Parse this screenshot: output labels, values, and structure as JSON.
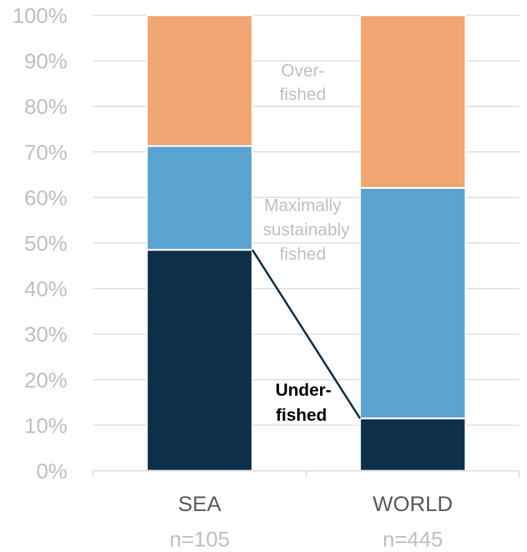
{
  "chart_data": {
    "type": "bar",
    "stacked": true,
    "categories": [
      "SEA",
      "WORLD"
    ],
    "sample_sizes": [
      "n=105",
      "n=445"
    ],
    "series": [
      {
        "name": "Under-fished",
        "values": [
          48.5,
          11.5
        ],
        "color": "#0e2f49"
      },
      {
        "name": "Maximally sustainably fished",
        "values": [
          22.8,
          50.6
        ],
        "color": "#5ba3d0"
      },
      {
        "name": "Over-fished",
        "values": [
          28.7,
          37.9
        ],
        "color": "#f0a572"
      }
    ],
    "ylim": [
      0,
      100
    ],
    "yticks": [
      "0%",
      "10%",
      "20%",
      "30%",
      "40%",
      "50%",
      "60%",
      "70%",
      "80%",
      "90%",
      "100%"
    ],
    "grid": true,
    "annotations": {
      "overfished": [
        "Over-",
        "fished"
      ],
      "msf": [
        "Maximally",
        "sustainably",
        "fished"
      ],
      "underfished": [
        "Under-",
        "fished"
      ]
    },
    "connector": "Under-fished top (SEA to WORLD)"
  }
}
